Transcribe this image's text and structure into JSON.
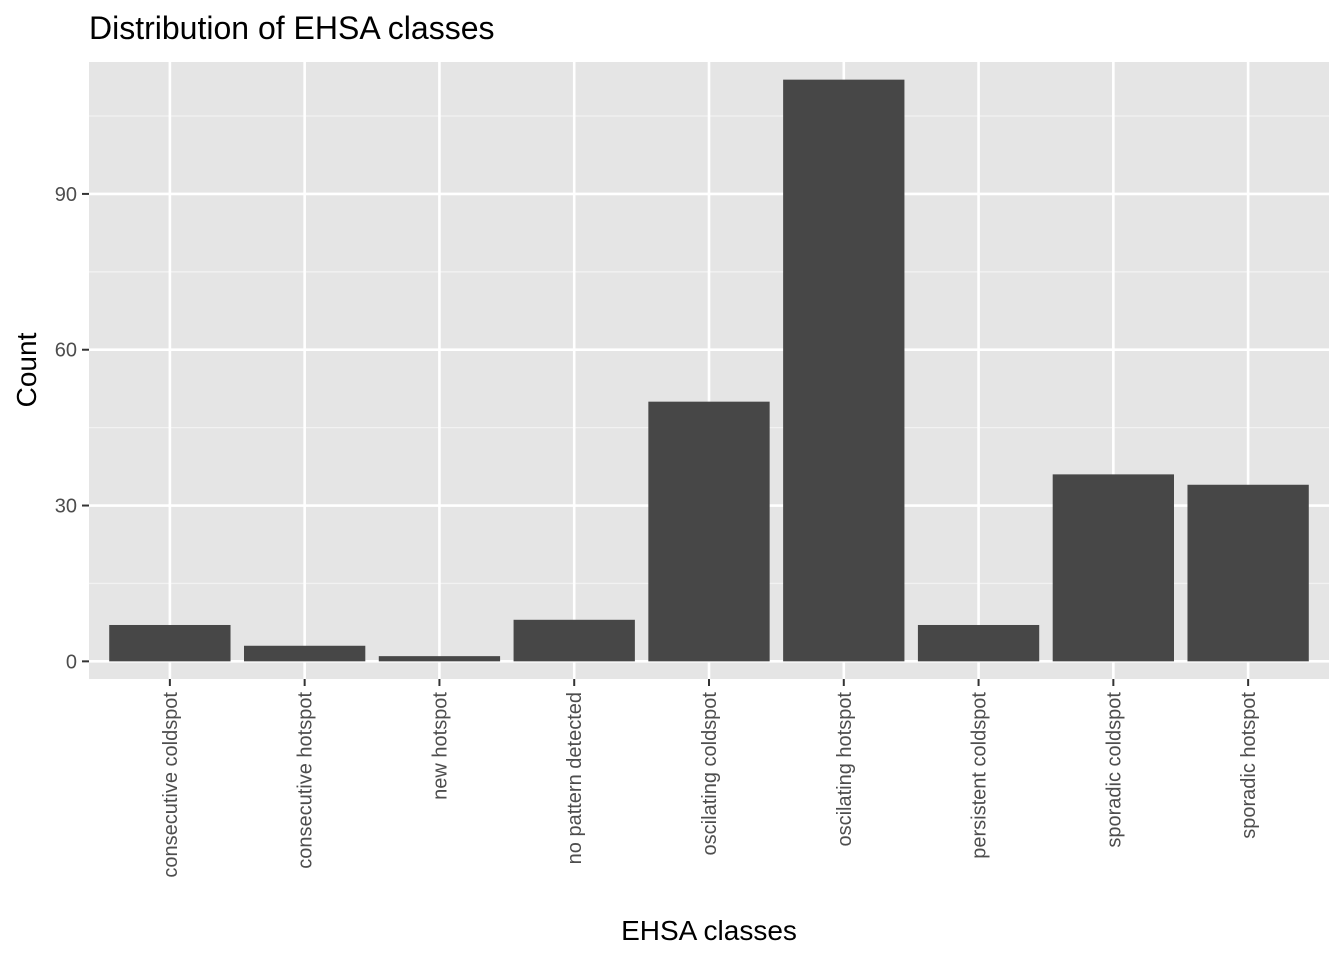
{
  "chart_data": {
    "type": "bar",
    "title": "Distribution of EHSA classes",
    "xlabel": "EHSA classes",
    "ylabel": "Count",
    "categories": [
      "consecutive coldspot",
      "consecutive hotspot",
      "new hotspot",
      "no pattern detected",
      "oscilating coldspot",
      "oscilating hotspot",
      "persistent coldspot",
      "sporadic coldspot",
      "sporadic hotspot"
    ],
    "values": [
      7,
      3,
      1,
      8,
      50,
      112,
      7,
      36,
      34
    ],
    "ylim": [
      -3.4,
      115.4
    ],
    "yticks": [
      0,
      30,
      60,
      90
    ],
    "grid": true,
    "legend": "none",
    "colors": {
      "bar": "#474747",
      "panel": "#e5e5e5",
      "grid_major": "#ffffff",
      "grid_minor": "#f2f2f2",
      "tick": "#333333",
      "tick_text": "#4d4d4d"
    }
  }
}
